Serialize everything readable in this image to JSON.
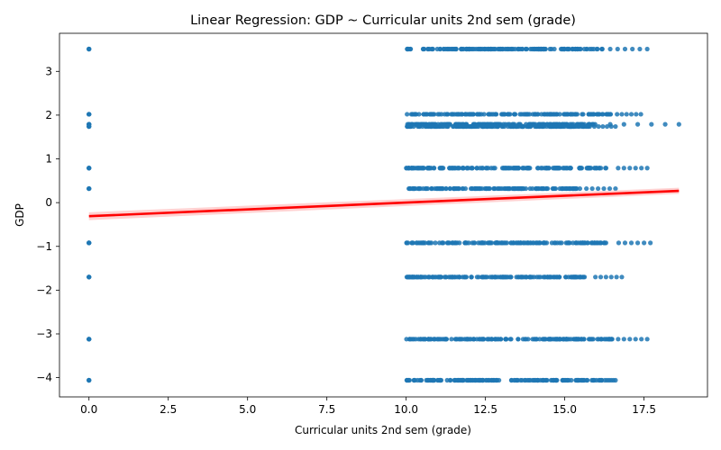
{
  "chart_data": {
    "type": "scatter",
    "title": "Linear Regression: GDP ~ Curricular units 2nd sem (grade)",
    "xlabel": "Curricular units 2nd sem (grade)",
    "ylabel": "GDP",
    "xlim": [
      -0.93,
      19.5
    ],
    "ylim": [
      -4.44,
      3.87
    ],
    "x_ticks": [
      0.0,
      2.5,
      5.0,
      7.5,
      10.0,
      12.5,
      15.0,
      17.5
    ],
    "x_tick_labels": [
      "0.0",
      "2.5",
      "5.0",
      "7.5",
      "10.0",
      "12.5",
      "15.0",
      "17.5"
    ],
    "y_ticks": [
      -4,
      -3,
      -2,
      -1,
      0,
      1,
      2,
      3
    ],
    "y_tick_labels": [
      "−4",
      "−3",
      "−2",
      "−1",
      "0",
      "1",
      "2",
      "3"
    ],
    "grid": false,
    "colors": {
      "points": "#1f77b4",
      "fit_line": "#ff0000",
      "ci_band": "#ffb3b3"
    },
    "series": [
      {
        "kind": "points",
        "levels": [
          {
            "y": 3.51,
            "x_min": 10.0,
            "x_max": 17.6,
            "dense_min": 10.0,
            "dense_max": 16.2
          },
          {
            "y": 2.02,
            "x_min": 10.0,
            "x_max": 17.4,
            "dense_min": 10.0,
            "dense_max": 16.5
          },
          {
            "y": 1.79,
            "x_min": 10.0,
            "x_max": 18.6,
            "dense_min": 10.0,
            "dense_max": 16.0
          },
          {
            "y": 1.74,
            "x_min": 10.0,
            "x_max": 16.6,
            "dense_min": 10.0,
            "dense_max": 15.8
          },
          {
            "y": 0.79,
            "x_min": 10.0,
            "x_max": 17.6,
            "dense_min": 10.0,
            "dense_max": 16.5
          },
          {
            "y": 0.32,
            "x_min": 10.0,
            "x_max": 16.6,
            "dense_min": 10.0,
            "dense_max": 15.5
          },
          {
            "y": -0.92,
            "x_min": 10.0,
            "x_max": 17.7,
            "dense_min": 10.0,
            "dense_max": 16.5
          },
          {
            "y": -1.7,
            "x_min": 10.0,
            "x_max": 16.8,
            "dense_min": 10.0,
            "dense_max": 15.8
          },
          {
            "y": -3.12,
            "x_min": 10.0,
            "x_max": 17.6,
            "dense_min": 10.0,
            "dense_max": 16.5
          },
          {
            "y": -4.06,
            "x_min": 10.0,
            "x_max": 16.6,
            "dense_min": 10.0,
            "dense_max": 16.2
          }
        ],
        "zero_x": 0.0
      },
      {
        "kind": "regression_line",
        "x": [
          0.0,
          18.6
        ],
        "y": [
          -0.31,
          0.27
        ],
        "ci_halfwidth": [
          0.09,
          0.07
        ]
      }
    ]
  }
}
